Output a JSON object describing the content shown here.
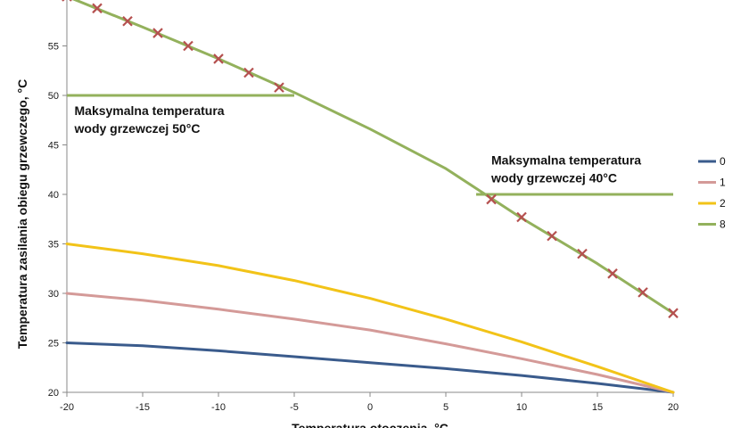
{
  "chart_data": {
    "type": "line",
    "xlabel": "Temperatura otoczenia, °C",
    "ylabel": "Temperatura zasilania obiegu grzewczego, °C",
    "xlim": [
      -20,
      20
    ],
    "ylim": [
      20,
      60
    ],
    "x_ticks": [
      -20,
      -15,
      -10,
      -5,
      0,
      5,
      10,
      15,
      20
    ],
    "y_ticks": [
      20,
      25,
      30,
      35,
      40,
      45,
      50,
      55
    ],
    "grid": false,
    "legend_position": "right",
    "series": [
      {
        "name": "0",
        "color": "#3a5b8c",
        "points": [
          [
            -20,
            25.0
          ],
          [
            -15,
            24.7
          ],
          [
            -10,
            24.2
          ],
          [
            -5,
            23.6
          ],
          [
            0,
            23.0
          ],
          [
            5,
            22.4
          ],
          [
            10,
            21.7
          ],
          [
            15,
            20.9
          ],
          [
            20,
            20.0
          ]
        ]
      },
      {
        "name": "1",
        "color": "#d49a98",
        "points": [
          [
            -20,
            30.0
          ],
          [
            -15,
            29.3
          ],
          [
            -10,
            28.4
          ],
          [
            -5,
            27.4
          ],
          [
            0,
            26.3
          ],
          [
            5,
            24.9
          ],
          [
            10,
            23.4
          ],
          [
            15,
            21.8
          ],
          [
            20,
            20.0
          ]
        ]
      },
      {
        "name": "2",
        "color": "#f2c318",
        "points": [
          [
            -20,
            35.0
          ],
          [
            -15,
            34.0
          ],
          [
            -10,
            32.8
          ],
          [
            -5,
            31.3
          ],
          [
            0,
            29.5
          ],
          [
            5,
            27.4
          ],
          [
            10,
            25.1
          ],
          [
            15,
            22.6
          ],
          [
            20,
            20.0
          ]
        ]
      },
      {
        "name": "8",
        "color": "#93b15c",
        "points": [
          [
            -20,
            60.0
          ],
          [
            -15,
            56.9
          ],
          [
            -10,
            53.7
          ],
          [
            -5,
            50.3
          ],
          [
            0,
            46.6
          ],
          [
            5,
            42.6
          ],
          [
            10,
            37.6
          ],
          [
            15,
            33.0
          ],
          [
            20,
            28.0
          ]
        ]
      }
    ],
    "limit_lines": [
      {
        "y": 50,
        "x_from": -20,
        "x_to": -5,
        "color": "#93b15c"
      },
      {
        "y": 40,
        "x_from": 7,
        "x_to": 20,
        "color": "#93b15c"
      }
    ],
    "markers": {
      "symbol": "x",
      "color": "#b5504f",
      "points": [
        [
          -20,
          60.0
        ],
        [
          -18,
          58.8
        ],
        [
          -16,
          57.5
        ],
        [
          -14,
          56.3
        ],
        [
          -12,
          55.0
        ],
        [
          -10,
          53.7
        ],
        [
          -8,
          52.3
        ],
        [
          -6,
          50.8
        ],
        [
          8,
          39.5
        ],
        [
          10,
          37.7
        ],
        [
          12,
          35.8
        ],
        [
          14,
          34.0
        ],
        [
          16,
          32.0
        ],
        [
          18,
          30.1
        ],
        [
          20,
          28.0
        ]
      ]
    },
    "annotations": [
      {
        "lines": [
          "Maksymalna temperatura",
          "wody grzewczej 50°C"
        ],
        "x": -19.5,
        "y": 48.0
      },
      {
        "lines": [
          "Maksymalna temperatura",
          "wody grzewczej 40°C"
        ],
        "x": 8.0,
        "y": 43.0
      }
    ]
  }
}
